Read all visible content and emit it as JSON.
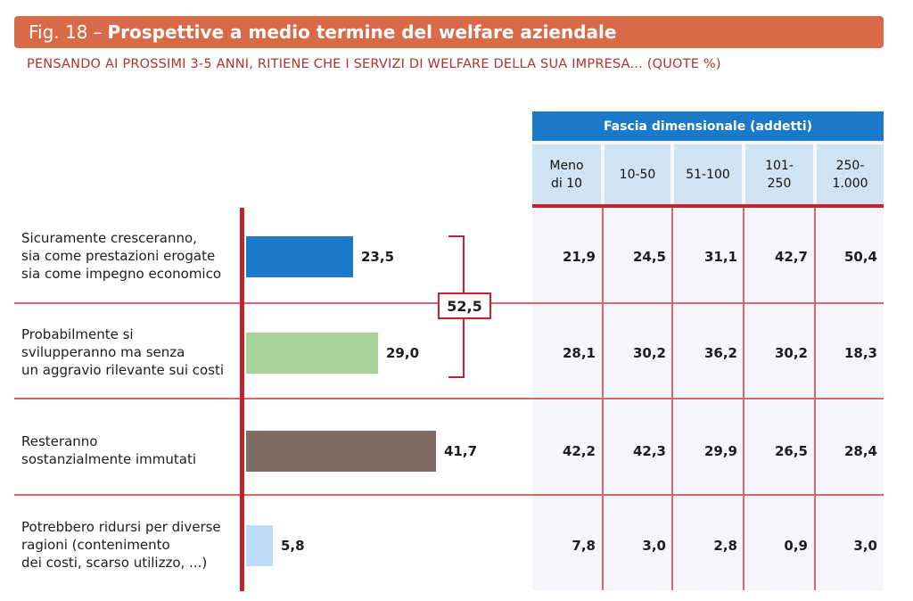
{
  "figure": {
    "number": "Fig. 18",
    "dash": "–",
    "title": "Prospettive a medio termine del welfare aziendale",
    "subtitle": "PENSANDO AI PROSSIMI 3-5 ANNI, RITIENE CHE I SERVIZI DI WELFARE DELLA SUA IMPRESA... (QUOTE %)"
  },
  "chart_data": {
    "type": "bar",
    "orientation": "horizontal",
    "categories": [
      [
        "Sicuramente cresceranno,",
        "sia come prestazioni erogate",
        "sia come impegno economico"
      ],
      [
        "Probabilmente si",
        "svilupperanno ma senza",
        "un aggravio rilevante sui costi"
      ],
      [
        "Resteranno",
        "sostanzialmente immutati"
      ],
      [
        "Potrebbero ridursi per diverse",
        "ragioni (contenimento",
        "dei costi, scarso utilizzo, ...)"
      ]
    ],
    "values": [
      23.5,
      29.0,
      41.7,
      5.8
    ],
    "value_labels": [
      "23,5",
      "29,0",
      "41,7",
      "5,8"
    ],
    "colors": [
      "#1a79c8",
      "#a8d39a",
      "#7f6c62",
      "#bcdcf4"
    ],
    "bracket_sum": "52,5",
    "table": {
      "group_header": "Fascia dimensionale (addetti)",
      "columns": [
        [
          "Meno",
          "di 10"
        ],
        [
          "10-50"
        ],
        [
          "51-100"
        ],
        [
          "101-",
          "250"
        ],
        [
          "250-",
          "1.000"
        ]
      ],
      "rows": [
        [
          "21,9",
          "24,5",
          "31,1",
          "42,7",
          "50,4"
        ],
        [
          "28,1",
          "30,2",
          "36,2",
          "30,2",
          "18,3"
        ],
        [
          "42,2",
          "42,3",
          "29,9",
          "26,5",
          "28,4"
        ],
        [
          "7,8",
          "3,0",
          "2,8",
          "0,9",
          "3,0"
        ]
      ]
    }
  }
}
